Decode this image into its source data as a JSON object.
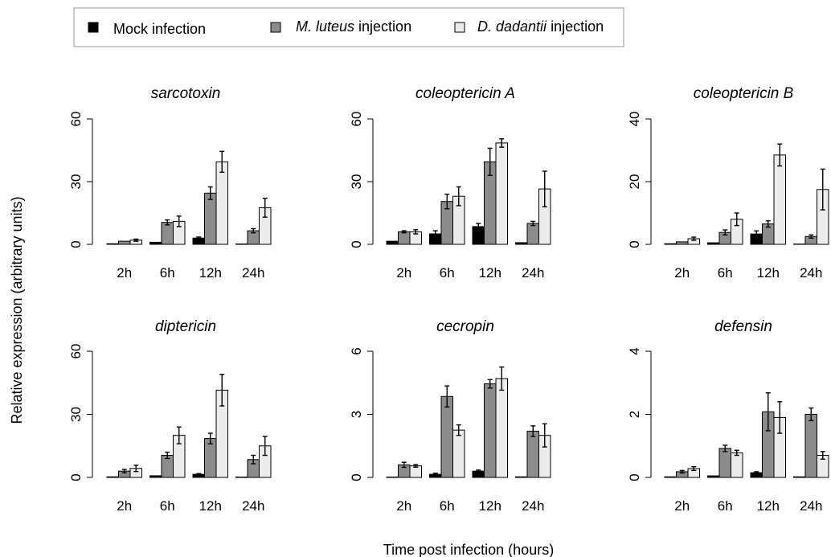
{
  "legend": {
    "items": [
      {
        "prefix": "",
        "italic": "",
        "suffix": "Mock infection",
        "color": "#000000"
      },
      {
        "prefix": "",
        "italic": "M. luteus",
        "suffix": " injection",
        "color": "#8c8c8c"
      },
      {
        "prefix": "",
        "italic": "D. dadantii",
        "suffix": " injection",
        "color": "#ececec"
      }
    ]
  },
  "ylabel": "Relative expression (arbitrary units)",
  "xlabel": "Time post infection (hours)",
  "chart_data": [
    {
      "type": "bar",
      "title": "sarcotoxin",
      "categories": [
        "2h",
        "6h",
        "12h",
        "24h"
      ],
      "ylim": [
        0,
        60
      ],
      "yticks": [
        0,
        30,
        60
      ],
      "series": [
        {
          "name": "Mock infection",
          "values": [
            0.3,
            1.0,
            3.0,
            0.2
          ],
          "errors": [
            0,
            0,
            0.5,
            0
          ]
        },
        {
          "name": "M. luteus injection",
          "values": [
            1.5,
            10.5,
            24.5,
            6.5
          ],
          "errors": [
            0,
            1.2,
            3.0,
            1.0
          ]
        },
        {
          "name": "D. dadantii injection",
          "values": [
            2.0,
            11.0,
            39.5,
            17.5
          ],
          "errors": [
            0.5,
            2.5,
            5.0,
            4.5
          ]
        }
      ]
    },
    {
      "type": "bar",
      "title": "coleoptericin A",
      "categories": [
        "2h",
        "6h",
        "12h",
        "24h"
      ],
      "ylim": [
        0,
        60
      ],
      "yticks": [
        0,
        30,
        60
      ],
      "series": [
        {
          "name": "Mock infection",
          "values": [
            1.5,
            5.0,
            8.5,
            0.8
          ],
          "errors": [
            0,
            1.5,
            1.5,
            0
          ]
        },
        {
          "name": "M. luteus injection",
          "values": [
            6.0,
            20.5,
            39.5,
            10.0
          ],
          "errors": [
            0.5,
            3.5,
            6.5,
            1.0
          ]
        },
        {
          "name": "D. dadantii injection",
          "values": [
            6.0,
            23.0,
            48.5,
            26.5
          ],
          "errors": [
            1.0,
            4.5,
            2.0,
            8.5
          ]
        }
      ]
    },
    {
      "type": "bar",
      "title": "coleoptericin B",
      "categories": [
        "2h",
        "6h",
        "12h",
        "24h"
      ],
      "ylim": [
        0,
        40
      ],
      "yticks": [
        0,
        20,
        40
      ],
      "series": [
        {
          "name": "Mock infection",
          "values": [
            0.2,
            0.5,
            3.3,
            0.1
          ],
          "errors": [
            0,
            0,
            1.0,
            0
          ]
        },
        {
          "name": "M. luteus injection",
          "values": [
            0.8,
            3.8,
            6.5,
            2.5
          ],
          "errors": [
            0,
            0.8,
            1.0,
            0.5
          ]
        },
        {
          "name": "D. dadantii injection",
          "values": [
            1.8,
            8.0,
            28.5,
            17.5
          ],
          "errors": [
            0.5,
            2.0,
            3.5,
            6.5
          ]
        }
      ]
    },
    {
      "type": "bar",
      "title": "diptericin",
      "categories": [
        "2h",
        "6h",
        "12h",
        "24h"
      ],
      "ylim": [
        0,
        60
      ],
      "yticks": [
        0,
        30,
        60
      ],
      "series": [
        {
          "name": "Mock infection",
          "values": [
            0.3,
            0.8,
            1.5,
            0.2
          ],
          "errors": [
            0,
            0,
            0.3,
            0
          ]
        },
        {
          "name": "M. luteus injection",
          "values": [
            3.0,
            10.5,
            18.5,
            8.5
          ],
          "errors": [
            0.8,
            1.5,
            2.5,
            2.0
          ]
        },
        {
          "name": "D. dadantii injection",
          "values": [
            4.3,
            20.0,
            41.5,
            15.0
          ],
          "errors": [
            1.5,
            4.0,
            7.5,
            4.5
          ]
        }
      ]
    },
    {
      "type": "bar",
      "title": "cecropin",
      "categories": [
        "2h",
        "6h",
        "12h",
        "24h"
      ],
      "ylim": [
        0,
        6
      ],
      "yticks": [
        0,
        3,
        6
      ],
      "series": [
        {
          "name": "Mock infection",
          "values": [
            0.02,
            0.15,
            0.3,
            0.03
          ],
          "errors": [
            0,
            0.05,
            0.05,
            0
          ]
        },
        {
          "name": "M. luteus injection",
          "values": [
            0.6,
            3.85,
            4.45,
            2.2
          ],
          "errors": [
            0.12,
            0.5,
            0.2,
            0.25
          ]
        },
        {
          "name": "D. dadantii injection",
          "values": [
            0.55,
            2.25,
            4.7,
            2.0
          ],
          "errors": [
            0.06,
            0.25,
            0.55,
            0.55
          ]
        }
      ]
    },
    {
      "type": "bar",
      "title": "defensin",
      "categories": [
        "2h",
        "6h",
        "12h",
        "24h"
      ],
      "ylim": [
        0,
        4
      ],
      "yticks": [
        0,
        2,
        4
      ],
      "series": [
        {
          "name": "Mock infection",
          "values": [
            0.02,
            0.05,
            0.15,
            0.02
          ],
          "errors": [
            0,
            0,
            0.03,
            0
          ]
        },
        {
          "name": "M. luteus injection",
          "values": [
            0.18,
            0.92,
            2.08,
            2.0
          ],
          "errors": [
            0.04,
            0.1,
            0.6,
            0.2
          ]
        },
        {
          "name": "D. dadantii injection",
          "values": [
            0.28,
            0.78,
            1.9,
            0.7
          ],
          "errors": [
            0.06,
            0.08,
            0.5,
            0.12
          ]
        }
      ]
    }
  ]
}
